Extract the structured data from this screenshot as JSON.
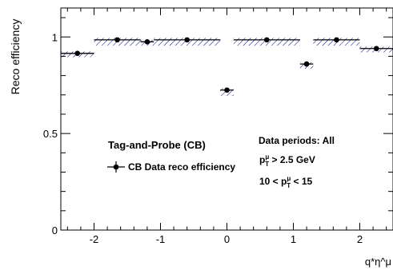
{
  "chart_data": {
    "type": "scatter",
    "title": "",
    "xlabel": "q*η^μ",
    "ylabel": "Reco efficiency",
    "xlim": [
      -2.5,
      2.5
    ],
    "ylim": [
      0,
      1.15
    ],
    "x_ticks": [
      -2,
      -1,
      0,
      1,
      2
    ],
    "y_ticks": [
      0,
      0.5,
      1
    ],
    "grid": false,
    "legend_position": "center-left",
    "colors": {
      "marker": "#000000",
      "hatch": "#00008b"
    },
    "series": [
      {
        "name": "CB Data reco efficiency",
        "x_bins": [
          [
            -2.5,
            -2.0
          ],
          [
            -2.0,
            -1.3
          ],
          [
            -1.3,
            -1.1
          ],
          [
            -1.1,
            -0.1
          ],
          [
            -0.1,
            0.1
          ],
          [
            0.1,
            1.1
          ],
          [
            1.1,
            1.3
          ],
          [
            1.3,
            2.0
          ],
          [
            2.0,
            2.5
          ]
        ],
        "x": [
          -2.25,
          -1.65,
          -1.2,
          -0.6,
          0.0,
          0.6,
          1.2,
          1.65,
          2.25
        ],
        "values": [
          0.915,
          0.985,
          0.975,
          0.985,
          0.725,
          0.985,
          0.86,
          0.985,
          0.94
        ],
        "sys_band": [
          [
            0.895,
            0.925
          ],
          [
            0.955,
            0.995
          ],
          [
            0.955,
            0.985
          ],
          [
            0.955,
            0.995
          ],
          [
            0.695,
            0.735
          ],
          [
            0.955,
            0.995
          ],
          [
            0.835,
            0.87
          ],
          [
            0.955,
            0.995
          ],
          [
            0.92,
            0.95
          ]
        ]
      }
    ],
    "annotations": {
      "method": "Tag-and-Probe (CB)",
      "periods": "Data periods: All",
      "pt_cut": "p_T^μ > 2.5 GeV",
      "pt_bin": "10 < p_T^μ < 15"
    }
  }
}
